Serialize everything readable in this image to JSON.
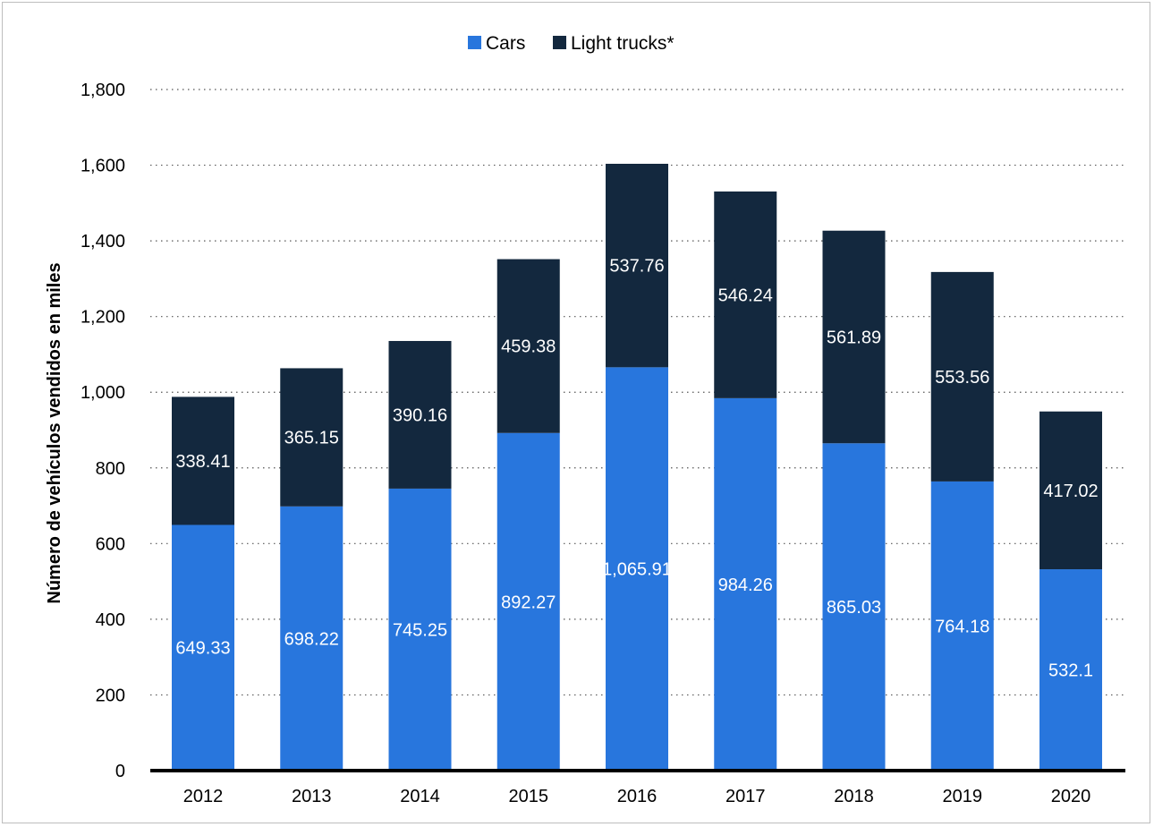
{
  "chart_data": {
    "type": "bar",
    "stacked": true,
    "categories": [
      "2012",
      "2013",
      "2014",
      "2015",
      "2016",
      "2017",
      "2018",
      "2019",
      "2020"
    ],
    "series": [
      {
        "name": "Cars",
        "color": "#2876dd",
        "values": [
          649.33,
          698.22,
          745.25,
          892.27,
          1065.91,
          984.26,
          865.03,
          764.18,
          532.1
        ]
      },
      {
        "name": "Light trucks*",
        "color": "#13283e",
        "values": [
          338.41,
          365.15,
          390.16,
          459.38,
          537.76,
          546.24,
          561.89,
          553.56,
          417.02
        ]
      }
    ],
    "value_labels": [
      [
        "649.33",
        "698.22",
        "745.25",
        "892.27",
        "1,065.91",
        "984.26",
        "865.03",
        "764.18",
        "532.1"
      ],
      [
        "338.41",
        "365.15",
        "390.16",
        "459.38",
        "537.76",
        "546.24",
        "561.89",
        "553.56",
        "417.02"
      ]
    ],
    "title": "",
    "xlabel": "",
    "ylabel": "Número de vehículos vendidos en miles",
    "ylim": [
      0,
      1800
    ],
    "yticks": [
      0,
      200,
      400,
      600,
      800,
      1000,
      1200,
      1400,
      1600,
      1800
    ],
    "ytick_labels": [
      "0",
      "200",
      "400",
      "600",
      "800",
      "1,000",
      "1,200",
      "1,400",
      "1,600",
      "1,800"
    ],
    "grid": true,
    "grid_style": "dotted",
    "legend_position": "top-center"
  }
}
